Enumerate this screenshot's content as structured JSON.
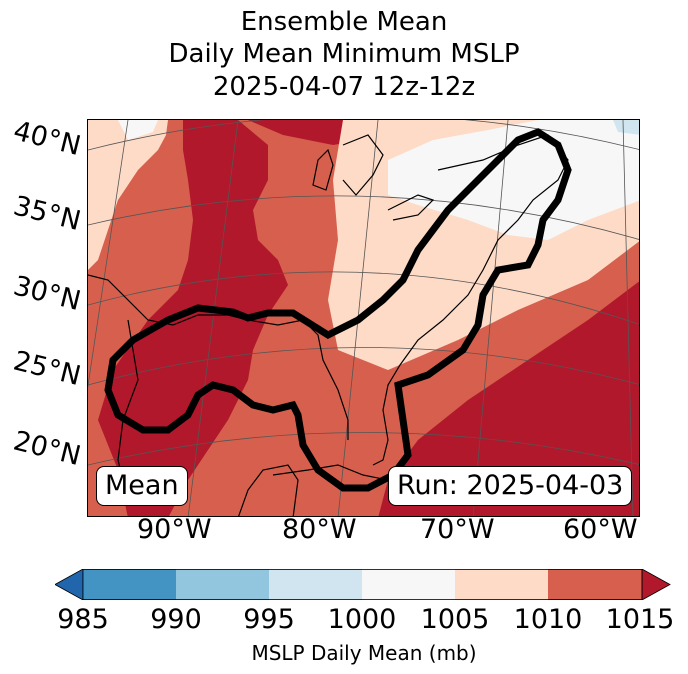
{
  "title": {
    "line1": "Ensemble Mean",
    "line2": "Daily Mean Minimum MSLP",
    "line3": "2025-04-07 12z-12z"
  },
  "map": {
    "lat_labels": [
      "40°N",
      "35°N",
      "30°N",
      "25°N",
      "20°N"
    ],
    "lon_labels": [
      "90°W",
      "80°W",
      "70°W",
      "60°W"
    ],
    "label_box_left": "Mean",
    "label_box_right": "Run: 2025-04-03",
    "contour_color": "#000000"
  },
  "colorbar": {
    "ticks": [
      "985",
      "990",
      "995",
      "1000",
      "1005",
      "1010",
      "1015"
    ],
    "label": "MSLP Daily Mean (mb)",
    "colors": {
      "under": "#2166ac",
      "b985_990": "#4393c3",
      "b990_995": "#92c5de",
      "b995_1000": "#d1e5f0",
      "b1000_1005": "#f7f7f7",
      "b1005_1010": "#fddbc7",
      "b1010_1015": "#d6604d",
      "over": "#b2182b"
    }
  }
}
